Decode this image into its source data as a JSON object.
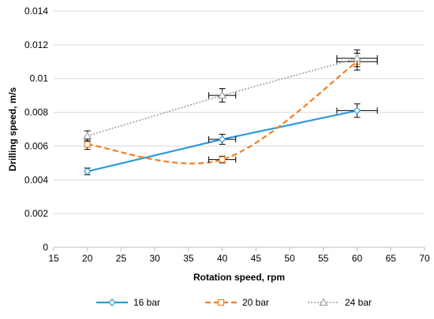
{
  "chart_data": {
    "type": "scatter",
    "title": "",
    "xlabel": "Rotation speed, rpm",
    "ylabel": "Drilling speed, m/s",
    "xlim": [
      15,
      70
    ],
    "ylim": [
      0,
      0.014
    ],
    "x_ticks": [
      "15",
      "20",
      "25",
      "30",
      "35",
      "40",
      "45",
      "50",
      "55",
      "60",
      "65",
      "70"
    ],
    "y_ticks": [
      "0",
      "0.002",
      "0.004",
      "0.006",
      "0.008",
      "0.01",
      "0.012",
      "0.014"
    ],
    "grid": "horizontal",
    "legend_position": "bottom",
    "series": [
      {
        "name": "16 bar",
        "color": "#2E9BD6",
        "line": "solid",
        "marker": "diamond",
        "x": [
          20,
          40,
          60
        ],
        "y": [
          0.0045,
          0.0064,
          0.0081
        ],
        "x_err": [
          0,
          2,
          3
        ],
        "y_err": [
          0.0002,
          0.0003,
          0.0004
        ]
      },
      {
        "name": "20 bar",
        "color": "#F07F22",
        "line": "dashed",
        "marker": "square",
        "x": [
          20,
          40,
          60
        ],
        "y": [
          0.0061,
          0.0052,
          0.011
        ],
        "x_err": [
          0,
          2,
          3
        ],
        "y_err": [
          0.0003,
          0.0002,
          0.0005
        ]
      },
      {
        "name": "24 bar",
        "color": "#A0A0A0",
        "line": "dotted",
        "marker": "triangle",
        "x": [
          20,
          40,
          60
        ],
        "y": [
          0.0066,
          0.009,
          0.0112
        ],
        "x_err": [
          0,
          2,
          3
        ],
        "y_err": [
          0.0003,
          0.0004,
          0.0005
        ]
      }
    ]
  }
}
